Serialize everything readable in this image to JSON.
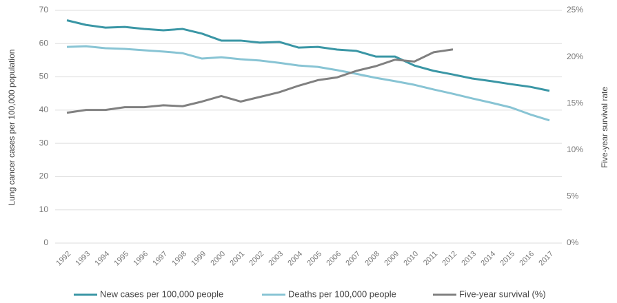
{
  "chart_data": {
    "type": "line",
    "y_label": "Lung cancer cases per 100,000 population",
    "y2_label": "Five-year survival rate",
    "x": [
      1992,
      1993,
      1994,
      1995,
      1996,
      1997,
      1998,
      1999,
      2000,
      2001,
      2002,
      2003,
      2004,
      2005,
      2006,
      2007,
      2008,
      2009,
      2010,
      2011,
      2012,
      2013,
      2014,
      2015,
      2016,
      2017
    ],
    "xlim": [
      1992,
      2017
    ],
    "ylim": [
      0,
      70
    ],
    "yticks": [
      0,
      10,
      20,
      30,
      40,
      50,
      60,
      70
    ],
    "y2lim": [
      0,
      25
    ],
    "y2ticks": [
      {
        "value": 0,
        "label": "0%"
      },
      {
        "value": 5,
        "label": "5%"
      },
      {
        "value": 10,
        "label": "10%"
      },
      {
        "value": 15,
        "label": "15%"
      },
      {
        "value": 20,
        "label": "20%"
      },
      {
        "value": 25,
        "label": "25%"
      }
    ],
    "grid": true,
    "legend": "bottom",
    "series": [
      {
        "name": "New cases per 100,000 people",
        "color": "#3a96a5",
        "values": [
          67.0,
          65.6,
          64.8,
          65.0,
          64.4,
          64.0,
          64.4,
          63.0,
          60.9,
          60.9,
          60.3,
          60.5,
          58.8,
          59.0,
          58.2,
          57.8,
          56.1,
          56.1,
          53.4,
          51.8,
          50.7,
          49.5,
          48.7,
          47.8,
          47.0,
          45.8
        ]
      },
      {
        "name": "Deaths per 100,000 people",
        "color": "#88c4d4",
        "values": [
          59.0,
          59.2,
          58.6,
          58.4,
          58.0,
          57.6,
          57.1,
          55.5,
          55.9,
          55.3,
          54.9,
          54.2,
          53.4,
          53.0,
          52.0,
          50.9,
          49.7,
          48.7,
          47.6,
          46.2,
          44.9,
          43.5,
          42.2,
          40.8,
          38.7,
          36.9
        ]
      },
      {
        "name": "Five-year survival (%)",
        "color": "#808080",
        "axis": "y2",
        "values": [
          14.0,
          14.3,
          14.3,
          14.6,
          14.6,
          14.8,
          14.7,
          15.2,
          15.8,
          15.2,
          15.7,
          16.2,
          16.9,
          17.5,
          17.8,
          18.5,
          19.0,
          19.7,
          19.5,
          20.5,
          20.8,
          null,
          null,
          null,
          null,
          null
        ]
      }
    ]
  }
}
